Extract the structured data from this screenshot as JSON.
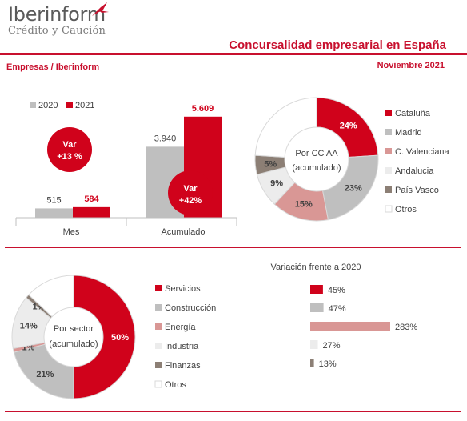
{
  "brand": {
    "name": "Iberinform",
    "tagline": "Crédito y Caución",
    "accent": "#c8102e"
  },
  "header": {
    "title": "Concursalidad empresarial en España",
    "left_label": "Empresas / Iberinform",
    "date": "Noviembre 2021"
  },
  "colors": {
    "red": "#d0021b",
    "gray": "#bfbfbf",
    "rose": "#d99795",
    "lightgray": "#ececec",
    "taupe": "#8c7f75",
    "white": "#ffffff"
  },
  "chart_data": [
    {
      "type": "bar",
      "legend": [
        "2020",
        "2021"
      ],
      "categories": [
        "Mes",
        "Acumulado"
      ],
      "series": [
        {
          "name": "2020",
          "values": [
            515,
            3940
          ],
          "labels": [
            "515",
            "3.940"
          ]
        },
        {
          "name": "2021",
          "values": [
            584,
            5609
          ],
          "labels": [
            "584",
            "5.609"
          ]
        }
      ],
      "annotations": [
        {
          "title": "Var",
          "value": "+13 %"
        },
        {
          "title": "Var",
          "value": "+42%"
        }
      ],
      "ylim": [
        0,
        6000
      ]
    },
    {
      "type": "pie",
      "center_label": [
        "Por CC AA",
        "(acumulado)"
      ],
      "slices": [
        {
          "name": "Cataluña",
          "value": 24,
          "label": "24%",
          "color": "#d0021b"
        },
        {
          "name": "Madrid",
          "value": 23,
          "label": "23%",
          "color": "#bfbfbf"
        },
        {
          "name": "C. Valenciana",
          "value": 15,
          "label": "15%",
          "color": "#d99795"
        },
        {
          "name": "Andalucia",
          "value": 9,
          "label": "9%",
          "color": "#ececec"
        },
        {
          "name": "País Vasco",
          "value": 5,
          "label": "5%",
          "color": "#8c7f75"
        },
        {
          "name": "Otros",
          "value": 24,
          "label": "",
          "color": "#ffffff"
        }
      ]
    },
    {
      "type": "pie",
      "center_label": [
        "Por sector",
        "(acumulado)"
      ],
      "slices": [
        {
          "name": "Servicios",
          "value": 50,
          "label": "50%",
          "color": "#d0021b"
        },
        {
          "name": "Construcción",
          "value": 21,
          "label": "21%",
          "color": "#bfbfbf"
        },
        {
          "name": "Energía",
          "value": 1,
          "label": "1%",
          "color": "#d99795"
        },
        {
          "name": "Industria",
          "value": 14,
          "label": "14%",
          "color": "#ececec"
        },
        {
          "name": "Finanzas",
          "value": 1,
          "label": "1%",
          "color": "#8c7f75"
        },
        {
          "name": "Otros",
          "value": 13,
          "label": "",
          "color": "#ffffff"
        }
      ]
    },
    {
      "type": "bar",
      "title": "Variación frente a 2020",
      "orientation": "horizontal",
      "categories": [
        "Servicios",
        "Construcción",
        "Energía",
        "Industria",
        "Finanzas"
      ],
      "values": [
        45,
        47,
        283,
        27,
        13
      ],
      "labels": [
        "45%",
        "47%",
        "283%",
        "27%",
        "13%"
      ],
      "colors": [
        "#d0021b",
        "#bfbfbf",
        "#d99795",
        "#ececec",
        "#8c7f75"
      ]
    }
  ]
}
